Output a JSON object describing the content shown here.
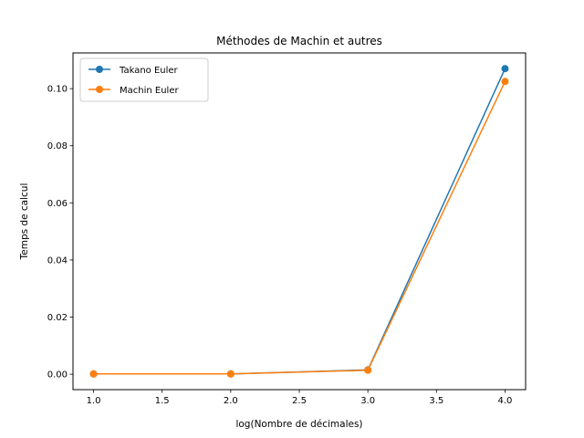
{
  "chart_data": {
    "type": "line",
    "title": "Méthodes de Machin et autres",
    "xlabel": "log(Nombre de décimales)",
    "ylabel": "Temps de calcul",
    "x": [
      1.0,
      2.0,
      3.0,
      4.0
    ],
    "xlim": [
      0.85,
      4.15
    ],
    "ylim": [
      -0.0054,
      0.1125
    ],
    "xticks": [
      1.0,
      1.5,
      2.0,
      2.5,
      3.0,
      3.5,
      4.0
    ],
    "xtick_labels": [
      "1.0",
      "1.5",
      "2.0",
      "2.5",
      "3.0",
      "3.5",
      "4.0"
    ],
    "yticks": [
      0.0,
      0.02,
      0.04,
      0.06,
      0.08,
      0.1
    ],
    "ytick_labels": [
      "0.00",
      "0.02",
      "0.04",
      "0.06",
      "0.08",
      "0.10"
    ],
    "grid": false,
    "legend_position": "top-left",
    "series": [
      {
        "name": "Takano Euler",
        "color": "#1f77b4",
        "marker": "circle",
        "values": [
          0.0001,
          0.0001,
          0.0015,
          0.107
        ]
      },
      {
        "name": "Machin Euler",
        "color": "#ff7f0e",
        "marker": "circle",
        "values": [
          0.0001,
          0.0001,
          0.0014,
          0.1025
        ]
      }
    ]
  }
}
